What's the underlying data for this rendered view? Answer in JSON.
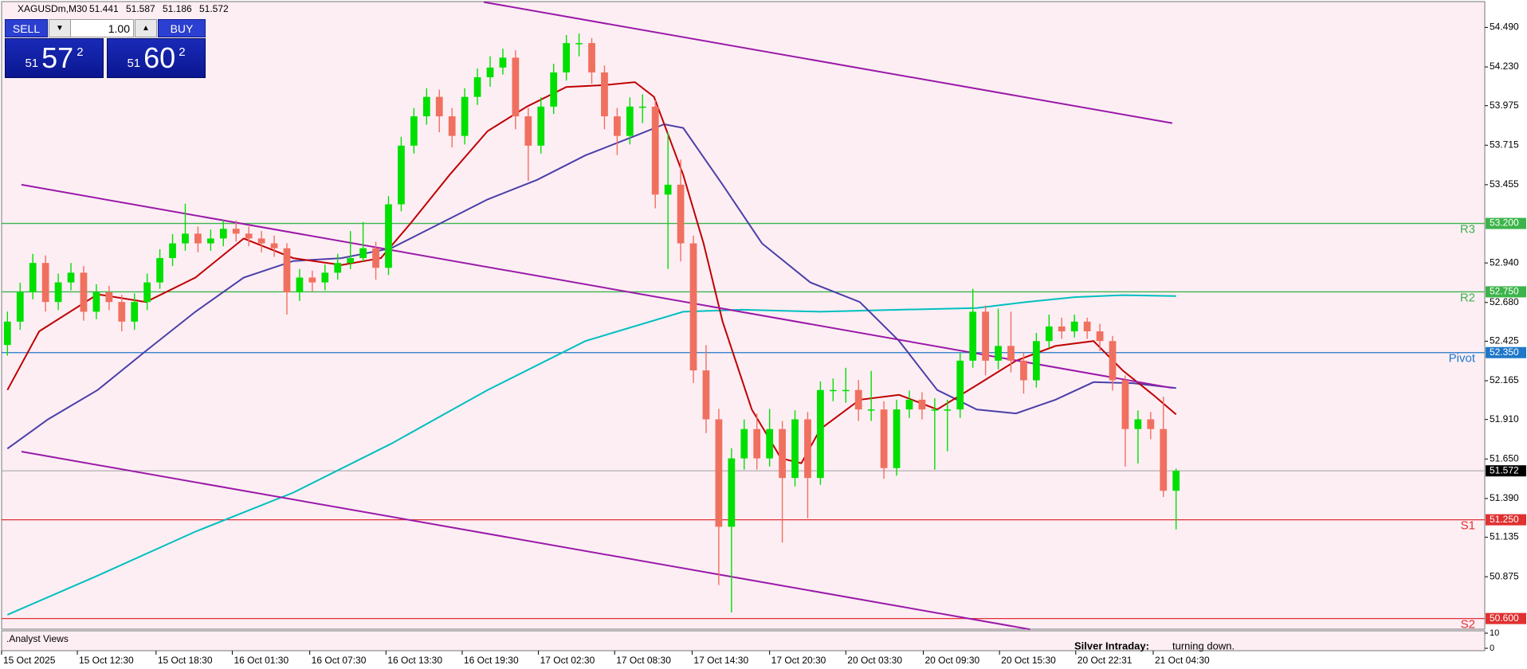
{
  "header": {
    "symbol": "XAGUSDm,M30",
    "open": 51.441,
    "high": 51.587,
    "low": 51.186,
    "close": 51.572
  },
  "trade_panel": {
    "sell": "SELL",
    "buy": "BUY",
    "lot": "1.00",
    "sell_price": {
      "big_figure": "51",
      "pips": "57",
      "point": "2"
    },
    "buy_price": {
      "big_figure": "51",
      "pips": "60",
      "point": "2"
    }
  },
  "chart_data": {
    "type": "candlestick",
    "up_color": "#00e000",
    "down_color": "#f0705f",
    "x": [
      0,
      1,
      2,
      3,
      4,
      5,
      6,
      7,
      8,
      9,
      10,
      11,
      12,
      13,
      14,
      15,
      16,
      17,
      18,
      19,
      20,
      21,
      22,
      23,
      24,
      25,
      26,
      27,
      28,
      29,
      30,
      31,
      32,
      33,
      34,
      35,
      36,
      37,
      38,
      39,
      40,
      41,
      42,
      43,
      44,
      45,
      46,
      47,
      48,
      49,
      50,
      51,
      52,
      53,
      54,
      55,
      56,
      57,
      58,
      59,
      60,
      61,
      62,
      63,
      64,
      65,
      66,
      67,
      68,
      69,
      70,
      71,
      72,
      73,
      74,
      75,
      76,
      77,
      78,
      79,
      80,
      81,
      82,
      83,
      84,
      85,
      86,
      87,
      88,
      89,
      90,
      91,
      92
    ],
    "open": [
      52.4,
      52.554,
      52.747,
      52.94,
      52.683,
      52.812,
      52.876,
      52.619,
      52.747,
      52.683,
      52.554,
      52.683,
      52.812,
      52.972,
      53.069,
      53.133,
      53.069,
      53.101,
      53.165,
      53.133,
      53.101,
      53.069,
      53.037,
      52.747,
      52.844,
      52.812,
      52.876,
      52.94,
      52.972,
      53.037,
      52.908,
      53.326,
      53.712,
      53.905,
      54.033,
      53.905,
      53.776,
      54.033,
      54.162,
      54.226,
      54.291,
      53.905,
      53.712,
      53.969,
      54.194,
      54.387,
      54.387,
      54.194,
      53.905,
      53.776,
      53.969,
      53.969,
      53.39,
      53.455,
      53.069,
      52.233,
      51.911,
      51.204,
      51.654,
      51.847,
      51.654,
      51.847,
      51.525,
      51.911,
      51.525,
      52.104,
      52.104,
      52.104,
      51.976,
      51.976,
      51.59,
      51.976,
      52.04,
      51.976,
      51.976,
      51.976,
      52.297,
      52.619,
      52.297,
      52.394,
      52.297,
      52.168,
      52.426,
      52.522,
      52.49,
      52.554,
      52.49,
      52.426,
      52.168,
      51.847,
      51.911,
      51.847,
      51.441
    ],
    "high": [
      52.62,
      52.81,
      53.0,
      52.99,
      52.87,
      52.94,
      52.92,
      52.8,
      52.79,
      52.73,
      52.74,
      52.87,
      53.03,
      53.13,
      53.33,
      53.18,
      53.16,
      53.22,
      53.22,
      53.18,
      53.15,
      53.12,
      53.07,
      52.9,
      52.89,
      52.93,
      53.0,
      53.15,
      53.21,
      53.08,
      53.38,
      53.77,
      53.96,
      54.09,
      54.08,
      53.96,
      54.09,
      54.22,
      54.3,
      54.35,
      54.34,
      53.96,
      54.03,
      54.25,
      54.44,
      54.45,
      54.42,
      54.24,
      53.96,
      54.03,
      54.05,
      54.01,
      53.8,
      53.62,
      53.12,
      52.4,
      51.98,
      51.72,
      51.91,
      51.95,
      51.98,
      51.9,
      51.97,
      51.96,
      52.16,
      52.18,
      52.25,
      52.17,
      52.23,
      52.03,
      52.04,
      52.1,
      52.09,
      52.05,
      52.04,
      52.35,
      52.77,
      52.66,
      52.64,
      52.62,
      52.35,
      52.48,
      52.6,
      52.58,
      52.6,
      52.58,
      52.54,
      52.46,
      52.2,
      51.97,
      51.96,
      52.06,
      51.587
    ],
    "low": [
      52.33,
      52.5,
      52.7,
      52.62,
      52.63,
      52.76,
      52.56,
      52.57,
      52.63,
      52.49,
      52.5,
      52.63,
      52.77,
      52.92,
      53.02,
      53.01,
      53.02,
      53.05,
      53.08,
      53.05,
      53.01,
      52.98,
      52.6,
      52.69,
      52.75,
      52.76,
      52.83,
      52.9,
      52.95,
      52.83,
      52.86,
      53.28,
      53.66,
      53.85,
      53.8,
      53.7,
      53.72,
      53.98,
      54.1,
      54.18,
      53.82,
      53.48,
      53.66,
      53.92,
      54.14,
      54.3,
      54.12,
      53.82,
      53.65,
      53.72,
      53.86,
      53.3,
      52.9,
      52.95,
      52.15,
      51.82,
      50.82,
      50.64,
      51.58,
      51.58,
      51.6,
      51.1,
      51.47,
      51.26,
      51.48,
      52.03,
      52.02,
      51.9,
      51.9,
      51.52,
      51.54,
      51.92,
      51.91,
      51.58,
      51.7,
      51.92,
      52.25,
      52.2,
      52.24,
      52.22,
      52.08,
      52.12,
      52.38,
      52.44,
      52.45,
      52.44,
      52.36,
      52.1,
      51.6,
      51.62,
      51.78,
      51.4,
      51.186
    ],
    "close": [
      52.554,
      52.747,
      52.94,
      52.683,
      52.812,
      52.876,
      52.619,
      52.747,
      52.683,
      52.554,
      52.683,
      52.812,
      52.972,
      53.069,
      53.133,
      53.069,
      53.101,
      53.165,
      53.133,
      53.101,
      53.069,
      53.037,
      52.747,
      52.844,
      52.812,
      52.876,
      52.94,
      52.972,
      53.037,
      52.908,
      53.326,
      53.712,
      53.905,
      54.033,
      53.905,
      53.776,
      54.033,
      54.162,
      54.226,
      54.291,
      53.905,
      53.712,
      53.969,
      54.194,
      54.387,
      54.387,
      54.194,
      53.905,
      53.776,
      53.969,
      53.969,
      53.39,
      53.455,
      53.069,
      52.233,
      51.911,
      51.204,
      51.654,
      51.847,
      51.654,
      51.847,
      51.525,
      51.911,
      51.525,
      52.104,
      52.104,
      52.104,
      51.976,
      51.976,
      51.59,
      51.976,
      52.04,
      51.976,
      51.976,
      51.976,
      52.297,
      52.619,
      52.297,
      52.394,
      52.297,
      52.168,
      52.426,
      52.522,
      52.49,
      52.554,
      52.49,
      52.426,
      52.168,
      51.847,
      51.911,
      51.847,
      51.441,
      51.572
    ],
    "overlays": [
      {
        "color": "#00bfbf",
        "x": [
          0,
          7.1,
          14.8,
          22.5,
          30.2,
          37.8,
          45.5,
          53.2,
          57.8,
          64,
          70.2,
          76.3,
          80.2,
          84,
          87.8,
          92
        ],
        "values": [
          50.625,
          50.882,
          51.172,
          51.429,
          51.75,
          52.104,
          52.426,
          52.619,
          52.632,
          52.619,
          52.632,
          52.644,
          52.683,
          52.715,
          52.728,
          52.722
        ]
      },
      {
        "color": "#4b3fa8",
        "x": [
          0,
          3.2,
          7.1,
          10.9,
          14.8,
          18.6,
          22.5,
          26.3,
          30.2,
          34,
          37.8,
          41.7,
          45.5,
          49.4,
          51.7,
          53.2,
          56.3,
          59.4,
          63.2,
          67.1,
          70.2,
          73.2,
          76.3,
          79.4,
          82.5,
          85.5,
          88.6,
          92
        ],
        "values": [
          51.718,
          51.911,
          52.104,
          52.361,
          52.619,
          52.844,
          52.953,
          52.972,
          53.037,
          53.197,
          53.358,
          53.487,
          53.648,
          53.776,
          53.853,
          53.828,
          53.455,
          53.069,
          52.812,
          52.683,
          52.426,
          52.104,
          51.976,
          51.95,
          52.04,
          52.156,
          52.149,
          52.117
        ]
      },
      {
        "color": "#c00000",
        "x": [
          0,
          2.5,
          7.1,
          10.9,
          14.8,
          18.6,
          22.5,
          26.3,
          29.4,
          31.7,
          34.8,
          37.8,
          40.9,
          44,
          47.1,
          49.4,
          50.9,
          53.2,
          54.8,
          56.3,
          58.6,
          60.9,
          62.5,
          64,
          67.1,
          70.2,
          73.2,
          76.3,
          79.4,
          82.5,
          85.5,
          87.8,
          90.2,
          92
        ],
        "values": [
          52.104,
          52.49,
          52.734,
          52.683,
          52.844,
          53.101,
          52.972,
          52.927,
          52.972,
          53.197,
          53.519,
          53.808,
          53.969,
          54.098,
          54.111,
          54.13,
          54.033,
          53.519,
          53.069,
          52.554,
          51.976,
          51.654,
          51.622,
          51.847,
          52.04,
          52.072,
          51.976,
          52.136,
          52.297,
          52.394,
          52.426,
          52.233,
          52.072,
          51.943
        ]
      }
    ],
    "trendlines": [
      {
        "color": "#9a1aa8",
        "x": [
          37.5,
          91.7
        ],
        "values": [
          54.657,
          53.86
        ]
      },
      {
        "color": "#9a1aa8",
        "x": [
          1.1,
          91.7
        ],
        "values": [
          53.455,
          52.117
        ]
      },
      {
        "color": "#9a1aa8",
        "x": [
          1.1,
          80.5
        ],
        "values": [
          51.699,
          50.529
        ]
      }
    ],
    "levels": [
      {
        "name": "R3",
        "value": 53.2,
        "label": "53.200",
        "color": "#3cb44b"
      },
      {
        "name": "R2",
        "value": 52.75,
        "label": "52.750",
        "color": "#3cb44b"
      },
      {
        "name": "Pivot",
        "value": 52.35,
        "label": "52.350",
        "color": "#1f77c8"
      },
      {
        "name": "S1",
        "value": 51.25,
        "label": "51.250",
        "color": "#e03030"
      },
      {
        "name": "S2",
        "value": 50.6,
        "label": "50.600",
        "color": "#e03030"
      }
    ],
    "last_price": 51.572,
    "xlim": [
      -0.46,
      116.3
    ],
    "xticks": [
      {
        "value": -0.46,
        "label": "15 Oct 2025"
      },
      {
        "value": 5.5,
        "label": "15 Oct 12:30"
      },
      {
        "value": 11.7,
        "label": "15 Oct 18:30"
      },
      {
        "value": 17.7,
        "label": "16 Oct 01:30"
      },
      {
        "value": 23.8,
        "label": "16 Oct 07:30"
      },
      {
        "value": 29.8,
        "label": "16 Oct 13:30"
      },
      {
        "value": 35.8,
        "label": "16 Oct 19:30"
      },
      {
        "value": 41.8,
        "label": "17 Oct 02:30"
      },
      {
        "value": 47.8,
        "label": "17 Oct 08:30"
      },
      {
        "value": 53.9,
        "label": "17 Oct 14:30"
      },
      {
        "value": 60,
        "label": "17 Oct 20:30"
      },
      {
        "value": 66,
        "label": "20 Oct 03:30"
      },
      {
        "value": 72.1,
        "label": "20 Oct 09:30"
      },
      {
        "value": 78.1,
        "label": "20 Oct 15:30"
      },
      {
        "value": 84.1,
        "label": "20 Oct 22:31"
      },
      {
        "value": 90.2,
        "label": "21 Oct 04:30"
      }
    ],
    "ylim": [
      50.53,
      54.66
    ],
    "yticks": [
      {
        "value": 54.49,
        "label": "54.490"
      },
      {
        "value": 54.23,
        "label": "54.230"
      },
      {
        "value": 53.975,
        "label": "53.975"
      },
      {
        "value": 53.715,
        "label": "53.715"
      },
      {
        "value": 53.455,
        "label": "53.455"
      },
      {
        "value": 52.94,
        "label": "52.940"
      },
      {
        "value": 52.68,
        "label": "52.680"
      },
      {
        "value": 52.425,
        "label": "52.425"
      },
      {
        "value": 52.165,
        "label": "52.165"
      },
      {
        "value": 51.91,
        "label": "51.910"
      },
      {
        "value": 51.65,
        "label": "51.650"
      },
      {
        "value": 51.39,
        "label": "51.390"
      },
      {
        "value": 51.135,
        "label": "51.135"
      },
      {
        "value": 50.875,
        "label": "50.875"
      }
    ],
    "indicator": {
      "name": ".Analyst Views",
      "label": "Silver Intraday:",
      "text": "turning down.",
      "ylim": [
        0,
        10
      ],
      "yticks": [
        0,
        10
      ]
    }
  }
}
